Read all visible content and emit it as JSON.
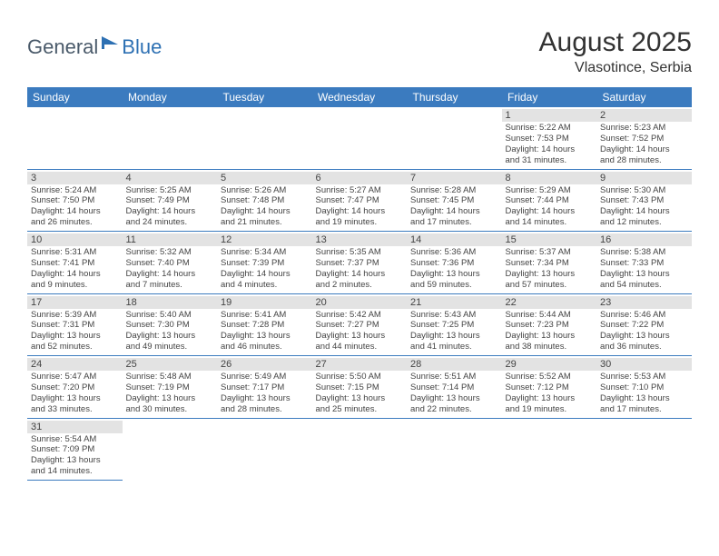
{
  "logo": {
    "part1": "General",
    "part2": "Blue"
  },
  "title": "August 2025",
  "location": "Vlasotince, Serbia",
  "colors": {
    "header_bg": "#3b7bbf",
    "header_text": "#ffffff",
    "daynum_bg": "#e3e3e3",
    "cell_border": "#3b7bbf",
    "logo_gray": "#4a5a6a",
    "logo_blue": "#2d70b3"
  },
  "weekdays": [
    "Sunday",
    "Monday",
    "Tuesday",
    "Wednesday",
    "Thursday",
    "Friday",
    "Saturday"
  ],
  "weeks": [
    [
      null,
      null,
      null,
      null,
      null,
      {
        "d": "1",
        "sr": "Sunrise: 5:22 AM",
        "ss": "Sunset: 7:53 PM",
        "dl1": "Daylight: 14 hours",
        "dl2": "and 31 minutes."
      },
      {
        "d": "2",
        "sr": "Sunrise: 5:23 AM",
        "ss": "Sunset: 7:52 PM",
        "dl1": "Daylight: 14 hours",
        "dl2": "and 28 minutes."
      }
    ],
    [
      {
        "d": "3",
        "sr": "Sunrise: 5:24 AM",
        "ss": "Sunset: 7:50 PM",
        "dl1": "Daylight: 14 hours",
        "dl2": "and 26 minutes."
      },
      {
        "d": "4",
        "sr": "Sunrise: 5:25 AM",
        "ss": "Sunset: 7:49 PM",
        "dl1": "Daylight: 14 hours",
        "dl2": "and 24 minutes."
      },
      {
        "d": "5",
        "sr": "Sunrise: 5:26 AM",
        "ss": "Sunset: 7:48 PM",
        "dl1": "Daylight: 14 hours",
        "dl2": "and 21 minutes."
      },
      {
        "d": "6",
        "sr": "Sunrise: 5:27 AM",
        "ss": "Sunset: 7:47 PM",
        "dl1": "Daylight: 14 hours",
        "dl2": "and 19 minutes."
      },
      {
        "d": "7",
        "sr": "Sunrise: 5:28 AM",
        "ss": "Sunset: 7:45 PM",
        "dl1": "Daylight: 14 hours",
        "dl2": "and 17 minutes."
      },
      {
        "d": "8",
        "sr": "Sunrise: 5:29 AM",
        "ss": "Sunset: 7:44 PM",
        "dl1": "Daylight: 14 hours",
        "dl2": "and 14 minutes."
      },
      {
        "d": "9",
        "sr": "Sunrise: 5:30 AM",
        "ss": "Sunset: 7:43 PM",
        "dl1": "Daylight: 14 hours",
        "dl2": "and 12 minutes."
      }
    ],
    [
      {
        "d": "10",
        "sr": "Sunrise: 5:31 AM",
        "ss": "Sunset: 7:41 PM",
        "dl1": "Daylight: 14 hours",
        "dl2": "and 9 minutes."
      },
      {
        "d": "11",
        "sr": "Sunrise: 5:32 AM",
        "ss": "Sunset: 7:40 PM",
        "dl1": "Daylight: 14 hours",
        "dl2": "and 7 minutes."
      },
      {
        "d": "12",
        "sr": "Sunrise: 5:34 AM",
        "ss": "Sunset: 7:39 PM",
        "dl1": "Daylight: 14 hours",
        "dl2": "and 4 minutes."
      },
      {
        "d": "13",
        "sr": "Sunrise: 5:35 AM",
        "ss": "Sunset: 7:37 PM",
        "dl1": "Daylight: 14 hours",
        "dl2": "and 2 minutes."
      },
      {
        "d": "14",
        "sr": "Sunrise: 5:36 AM",
        "ss": "Sunset: 7:36 PM",
        "dl1": "Daylight: 13 hours",
        "dl2": "and 59 minutes."
      },
      {
        "d": "15",
        "sr": "Sunrise: 5:37 AM",
        "ss": "Sunset: 7:34 PM",
        "dl1": "Daylight: 13 hours",
        "dl2": "and 57 minutes."
      },
      {
        "d": "16",
        "sr": "Sunrise: 5:38 AM",
        "ss": "Sunset: 7:33 PM",
        "dl1": "Daylight: 13 hours",
        "dl2": "and 54 minutes."
      }
    ],
    [
      {
        "d": "17",
        "sr": "Sunrise: 5:39 AM",
        "ss": "Sunset: 7:31 PM",
        "dl1": "Daylight: 13 hours",
        "dl2": "and 52 minutes."
      },
      {
        "d": "18",
        "sr": "Sunrise: 5:40 AM",
        "ss": "Sunset: 7:30 PM",
        "dl1": "Daylight: 13 hours",
        "dl2": "and 49 minutes."
      },
      {
        "d": "19",
        "sr": "Sunrise: 5:41 AM",
        "ss": "Sunset: 7:28 PM",
        "dl1": "Daylight: 13 hours",
        "dl2": "and 46 minutes."
      },
      {
        "d": "20",
        "sr": "Sunrise: 5:42 AM",
        "ss": "Sunset: 7:27 PM",
        "dl1": "Daylight: 13 hours",
        "dl2": "and 44 minutes."
      },
      {
        "d": "21",
        "sr": "Sunrise: 5:43 AM",
        "ss": "Sunset: 7:25 PM",
        "dl1": "Daylight: 13 hours",
        "dl2": "and 41 minutes."
      },
      {
        "d": "22",
        "sr": "Sunrise: 5:44 AM",
        "ss": "Sunset: 7:23 PM",
        "dl1": "Daylight: 13 hours",
        "dl2": "and 38 minutes."
      },
      {
        "d": "23",
        "sr": "Sunrise: 5:46 AM",
        "ss": "Sunset: 7:22 PM",
        "dl1": "Daylight: 13 hours",
        "dl2": "and 36 minutes."
      }
    ],
    [
      {
        "d": "24",
        "sr": "Sunrise: 5:47 AM",
        "ss": "Sunset: 7:20 PM",
        "dl1": "Daylight: 13 hours",
        "dl2": "and 33 minutes."
      },
      {
        "d": "25",
        "sr": "Sunrise: 5:48 AM",
        "ss": "Sunset: 7:19 PM",
        "dl1": "Daylight: 13 hours",
        "dl2": "and 30 minutes."
      },
      {
        "d": "26",
        "sr": "Sunrise: 5:49 AM",
        "ss": "Sunset: 7:17 PM",
        "dl1": "Daylight: 13 hours",
        "dl2": "and 28 minutes."
      },
      {
        "d": "27",
        "sr": "Sunrise: 5:50 AM",
        "ss": "Sunset: 7:15 PM",
        "dl1": "Daylight: 13 hours",
        "dl2": "and 25 minutes."
      },
      {
        "d": "28",
        "sr": "Sunrise: 5:51 AM",
        "ss": "Sunset: 7:14 PM",
        "dl1": "Daylight: 13 hours",
        "dl2": "and 22 minutes."
      },
      {
        "d": "29",
        "sr": "Sunrise: 5:52 AM",
        "ss": "Sunset: 7:12 PM",
        "dl1": "Daylight: 13 hours",
        "dl2": "and 19 minutes."
      },
      {
        "d": "30",
        "sr": "Sunrise: 5:53 AM",
        "ss": "Sunset: 7:10 PM",
        "dl1": "Daylight: 13 hours",
        "dl2": "and 17 minutes."
      }
    ],
    [
      {
        "d": "31",
        "sr": "Sunrise: 5:54 AM",
        "ss": "Sunset: 7:09 PM",
        "dl1": "Daylight: 13 hours",
        "dl2": "and 14 minutes."
      },
      null,
      null,
      null,
      null,
      null,
      null
    ]
  ]
}
